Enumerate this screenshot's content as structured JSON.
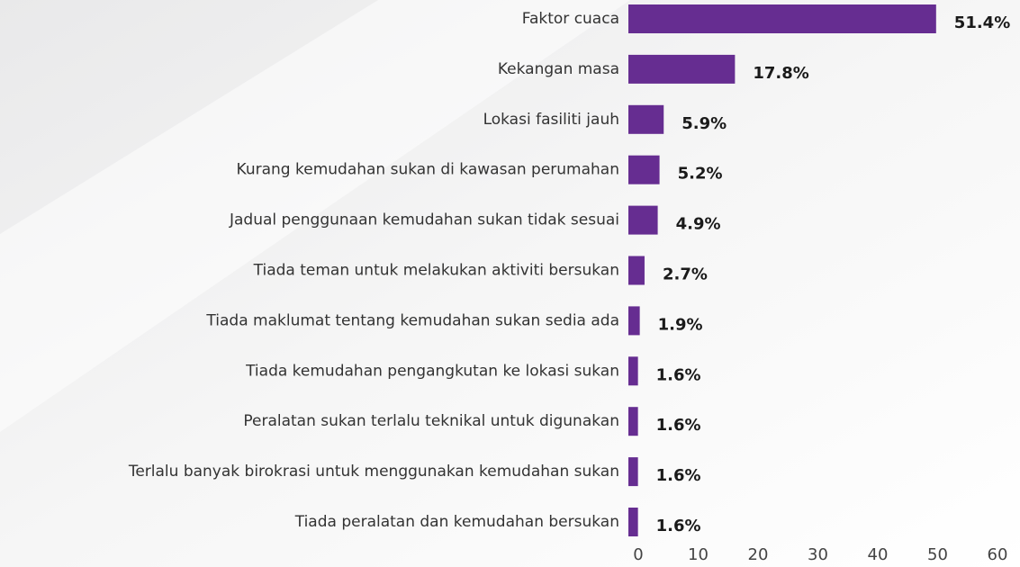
{
  "chart_data": {
    "type": "bar",
    "orientation": "horizontal",
    "categories": [
      "Faktor cuaca",
      "Kekangan masa",
      "Lokasi fasiliti jauh",
      "Kurang kemudahan sukan di kawasan perumahan",
      "Jadual penggunaan kemudahan sukan tidak sesuai",
      "Tiada teman untuk melakukan aktiviti bersukan",
      "Tiada maklumat tentang kemudahan sukan sedia ada",
      "Tiada kemudahan pengangkutan ke lokasi sukan",
      "Peralatan sukan terlalu teknikal untuk digunakan",
      "Terlalu banyak birokrasi untuk menggunakan kemudahan sukan",
      "Tiada peralatan dan kemudahan bersukan"
    ],
    "values": [
      51.4,
      17.8,
      5.9,
      5.2,
      4.9,
      2.7,
      1.9,
      1.6,
      1.6,
      1.6,
      1.6
    ],
    "value_labels": [
      "51.4%",
      "17.8%",
      "5.9%",
      "5.2%",
      "4.9%",
      "2.7%",
      "1.9%",
      "1.6%",
      "1.6%",
      "1.6%",
      "1.6%"
    ],
    "color": "#662d91",
    "xlim": [
      0,
      60
    ],
    "xticks": [
      0,
      10,
      20,
      30,
      40,
      50,
      60
    ]
  }
}
